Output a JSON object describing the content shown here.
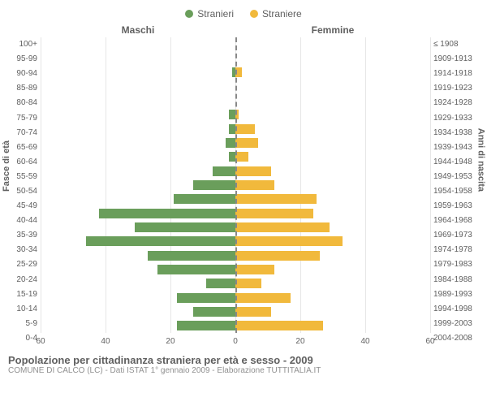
{
  "legend": {
    "male": {
      "label": "Stranieri",
      "color": "#6a9e5b"
    },
    "female": {
      "label": "Straniere",
      "color": "#f1b93c"
    }
  },
  "headers": {
    "male": "Maschi",
    "female": "Femmine"
  },
  "axis_titles": {
    "left": "Fasce di età",
    "right": "Anni di nascita"
  },
  "style": {
    "grid_color": "#e6e6e6",
    "center_line_color": "#888888",
    "background": "#ffffff",
    "tick_fontsize": 10,
    "xmax": 60,
    "xticks": [
      60,
      40,
      20,
      0,
      20,
      40,
      60
    ]
  },
  "age_groups": [
    {
      "age": "100+",
      "year": "≤ 1908",
      "m": 0,
      "f": 0
    },
    {
      "age": "95-99",
      "year": "1909-1913",
      "m": 0,
      "f": 0
    },
    {
      "age": "90-94",
      "year": "1914-1918",
      "m": 1,
      "f": 2
    },
    {
      "age": "85-89",
      "year": "1919-1923",
      "m": 0,
      "f": 0
    },
    {
      "age": "80-84",
      "year": "1924-1928",
      "m": 0,
      "f": 0
    },
    {
      "age": "75-79",
      "year": "1929-1933",
      "m": 2,
      "f": 1
    },
    {
      "age": "70-74",
      "year": "1934-1938",
      "m": 2,
      "f": 6
    },
    {
      "age": "65-69",
      "year": "1939-1943",
      "m": 3,
      "f": 7
    },
    {
      "age": "60-64",
      "year": "1944-1948",
      "m": 2,
      "f": 4
    },
    {
      "age": "55-59",
      "year": "1949-1953",
      "m": 7,
      "f": 11
    },
    {
      "age": "50-54",
      "year": "1954-1958",
      "m": 13,
      "f": 12
    },
    {
      "age": "45-49",
      "year": "1959-1963",
      "m": 19,
      "f": 25
    },
    {
      "age": "40-44",
      "year": "1964-1968",
      "m": 42,
      "f": 24
    },
    {
      "age": "35-39",
      "year": "1969-1973",
      "m": 31,
      "f": 29
    },
    {
      "age": "30-34",
      "year": "1974-1978",
      "m": 46,
      "f": 33
    },
    {
      "age": "25-29",
      "year": "1979-1983",
      "m": 27,
      "f": 26
    },
    {
      "age": "20-24",
      "year": "1984-1988",
      "m": 24,
      "f": 12
    },
    {
      "age": "15-19",
      "year": "1989-1993",
      "m": 9,
      "f": 8
    },
    {
      "age": "10-14",
      "year": "1994-1998",
      "m": 18,
      "f": 17
    },
    {
      "age": "5-9",
      "year": "1999-2003",
      "m": 13,
      "f": 11
    },
    {
      "age": "0-4",
      "year": "2004-2008",
      "m": 18,
      "f": 27
    }
  ],
  "footer": {
    "title": "Popolazione per cittadinanza straniera per età e sesso - 2009",
    "subtitle": "COMUNE DI CALCO (LC) - Dati ISTAT 1° gennaio 2009 - Elaborazione TUTTITALIA.IT"
  }
}
